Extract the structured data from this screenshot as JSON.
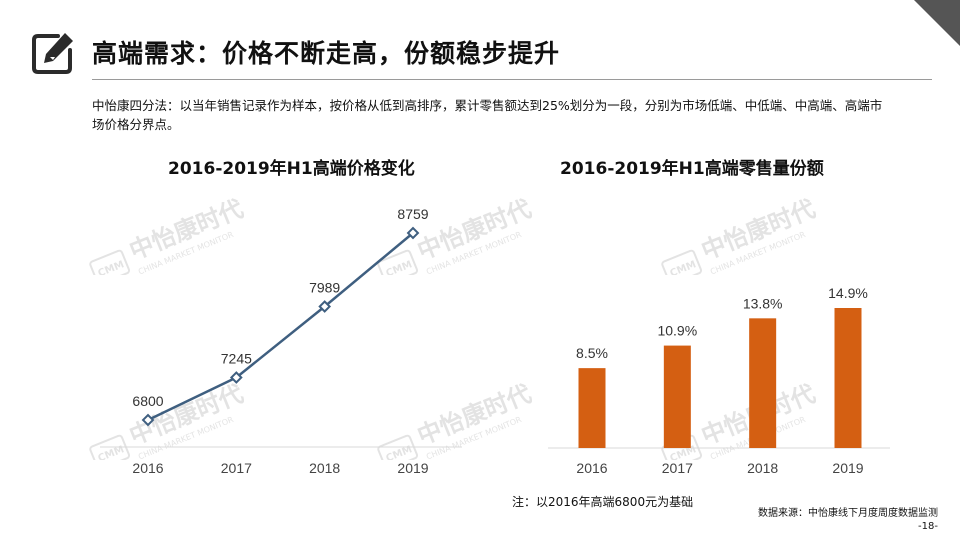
{
  "header": {
    "title": "高端需求：价格不断走高，份额稳步提升",
    "icon": "edit-icon"
  },
  "intro": "中怡康四分法：以当年销售记录作为样本，按价格从低到高排序，累计零售额达到25%划分为一段，分别为市场低端、中低端、中高端、高端市场价格分界点。",
  "watermark": {
    "brand": "中怡康时代",
    "tagline": "CHINA MARKET MONITOR",
    "logo": "CMM"
  },
  "chart_data": [
    {
      "type": "line",
      "title": "2016-2019年H1高端价格变化",
      "x": [
        "2016",
        "2017",
        "2018",
        "2019"
      ],
      "series": [
        {
          "values": [
            6800,
            7245,
            7989,
            8759
          ]
        }
      ],
      "color": "#3f5f80",
      "grid": false
    },
    {
      "type": "bar",
      "title": "2016-2019年H1高端零售量份额",
      "categories": [
        "2016",
        "2017",
        "2018",
        "2019"
      ],
      "values": [
        8.5,
        10.9,
        13.8,
        14.9
      ],
      "labels": [
        "8.5%",
        "10.9%",
        "13.8%",
        "14.9%"
      ],
      "color": "#d45f12",
      "grid": false
    }
  ],
  "footer": {
    "note": "注：以2016年高端6800元为基础",
    "source": "数据来源：中怡康线下月度周度数据监测",
    "page": "-18-"
  }
}
